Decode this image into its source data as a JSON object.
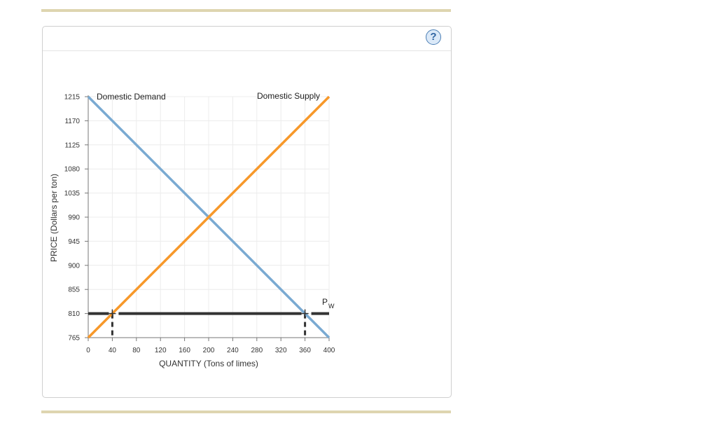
{
  "help": {
    "label": "?",
    "icon": "help-circle-icon"
  },
  "chart_data": {
    "type": "line",
    "xlabel": "QUANTITY (Tons of limes)",
    "ylabel": "PRICE (Dollars per ton)",
    "xlim": [
      0,
      400
    ],
    "ylim": [
      765,
      1215
    ],
    "x_ticks": [
      "0",
      "40",
      "80",
      "120",
      "160",
      "200",
      "240",
      "280",
      "320",
      "360",
      "400"
    ],
    "y_ticks": [
      "765",
      "810",
      "855",
      "900",
      "945",
      "990",
      "1035",
      "1080",
      "1125",
      "1170",
      "1215"
    ],
    "grid": true,
    "series": [
      {
        "name": "Domestic Demand",
        "color": "#7aaad2",
        "points": [
          [
            0,
            1215
          ],
          [
            400,
            765
          ]
        ]
      },
      {
        "name": "Domestic Supply",
        "color": "#f7982a",
        "points": [
          [
            0,
            765
          ],
          [
            400,
            1215
          ]
        ]
      },
      {
        "name": "P",
        "subscript": "W",
        "color": "#333333",
        "points": [
          [
            0,
            810
          ],
          [
            400,
            810
          ]
        ]
      }
    ],
    "drop_lines": [
      {
        "x": 40,
        "y": 810
      },
      {
        "x": 360,
        "y": 810
      }
    ]
  }
}
